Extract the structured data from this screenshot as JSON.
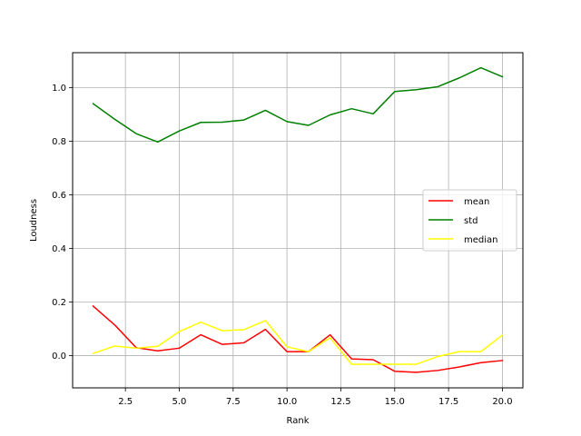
{
  "chart_data": {
    "type": "line",
    "title": "",
    "xlabel": "Rank",
    "ylabel": "Loudness",
    "x": [
      1,
      2,
      3,
      4,
      5,
      6,
      7,
      8,
      9,
      10,
      11,
      12,
      13,
      14,
      15,
      16,
      17,
      18,
      19,
      20
    ],
    "xlim": [
      0.05,
      20.95
    ],
    "ylim": [
      -0.12,
      1.13
    ],
    "xticks": [
      2.5,
      5.0,
      7.5,
      10.0,
      12.5,
      15.0,
      17.5,
      20.0
    ],
    "xtick_labels": [
      "2.5",
      "5.0",
      "7.5",
      "10.0",
      "12.5",
      "15.0",
      "17.5",
      "20.0"
    ],
    "yticks": [
      0.0,
      0.2,
      0.4,
      0.6,
      0.8,
      1.0
    ],
    "ytick_labels": [
      "0.0",
      "0.2",
      "0.4",
      "0.6",
      "0.8",
      "1.0"
    ],
    "grid": true,
    "legend_position": "center-right",
    "series": [
      {
        "name": "mean",
        "color": "#ff0000",
        "values": [
          0.185,
          0.115,
          0.03,
          0.018,
          0.028,
          0.078,
          0.042,
          0.048,
          0.098,
          0.015,
          0.015,
          0.078,
          -0.012,
          -0.015,
          -0.058,
          -0.062,
          -0.055,
          -0.042,
          -0.026,
          -0.018
        ]
      },
      {
        "name": "std",
        "color": "#008000",
        "values": [
          0.94,
          0.882,
          0.828,
          0.797,
          0.838,
          0.87,
          0.871,
          0.879,
          0.915,
          0.873,
          0.859,
          0.898,
          0.921,
          0.902,
          0.985,
          0.992,
          1.003,
          1.036,
          1.074,
          1.04
        ]
      },
      {
        "name": "median",
        "color": "#ffff00",
        "values": [
          0.008,
          0.036,
          0.028,
          0.035,
          0.09,
          0.125,
          0.093,
          0.097,
          0.131,
          0.033,
          0.015,
          0.067,
          -0.032,
          -0.032,
          -0.032,
          -0.032,
          -0.003,
          0.015,
          0.015,
          0.077
        ]
      }
    ]
  }
}
